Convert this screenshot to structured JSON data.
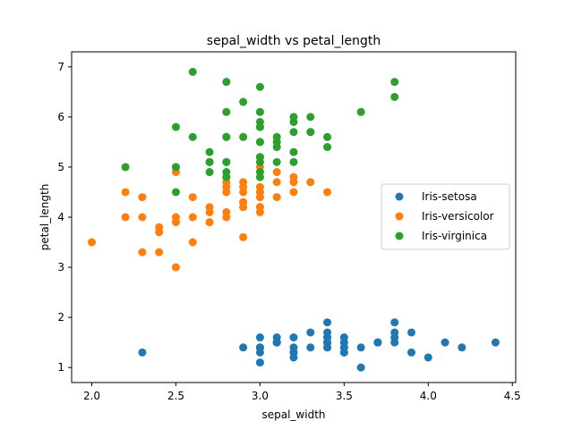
{
  "chart_data": {
    "type": "scatter",
    "title": "sepal_width vs petal_length",
    "xlabel": "sepal_width",
    "ylabel": "petal_length",
    "xlim": [
      1.88,
      4.52
    ],
    "ylim": [
      0.7,
      7.3
    ],
    "xticks": [
      "2.0",
      "2.5",
      "3.0",
      "3.5",
      "4.0",
      "4.5"
    ],
    "yticks": [
      "1",
      "2",
      "3",
      "4",
      "5",
      "6",
      "7"
    ],
    "legend_position": "center-right",
    "series": [
      {
        "name": "Iris-setosa",
        "color": "#1f77b4",
        "points": [
          [
            3.5,
            1.4
          ],
          [
            3.0,
            1.4
          ],
          [
            3.2,
            1.3
          ],
          [
            3.1,
            1.5
          ],
          [
            3.6,
            1.4
          ],
          [
            3.9,
            1.7
          ],
          [
            3.4,
            1.4
          ],
          [
            3.4,
            1.5
          ],
          [
            2.9,
            1.4
          ],
          [
            3.1,
            1.5
          ],
          [
            3.7,
            1.5
          ],
          [
            3.4,
            1.6
          ],
          [
            3.0,
            1.4
          ],
          [
            3.0,
            1.1
          ],
          [
            4.0,
            1.2
          ],
          [
            4.4,
            1.5
          ],
          [
            3.9,
            1.3
          ],
          [
            3.5,
            1.4
          ],
          [
            3.8,
            1.7
          ],
          [
            3.8,
            1.5
          ],
          [
            3.4,
            1.7
          ],
          [
            3.7,
            1.5
          ],
          [
            3.6,
            1.0
          ],
          [
            3.3,
            1.7
          ],
          [
            3.4,
            1.9
          ],
          [
            3.0,
            1.6
          ],
          [
            3.4,
            1.6
          ],
          [
            3.5,
            1.5
          ],
          [
            3.4,
            1.4
          ],
          [
            3.2,
            1.6
          ],
          [
            3.1,
            1.6
          ],
          [
            3.4,
            1.5
          ],
          [
            4.1,
            1.5
          ],
          [
            4.2,
            1.4
          ],
          [
            3.1,
            1.5
          ],
          [
            3.2,
            1.2
          ],
          [
            3.5,
            1.3
          ],
          [
            3.1,
            1.5
          ],
          [
            3.0,
            1.3
          ],
          [
            3.4,
            1.5
          ],
          [
            3.5,
            1.3
          ],
          [
            2.3,
            1.3
          ],
          [
            3.2,
            1.3
          ],
          [
            3.5,
            1.6
          ],
          [
            3.8,
            1.9
          ],
          [
            3.0,
            1.4
          ],
          [
            3.8,
            1.6
          ],
          [
            3.2,
            1.4
          ],
          [
            3.7,
            1.5
          ],
          [
            3.3,
            1.4
          ]
        ]
      },
      {
        "name": "Iris-versicolor",
        "color": "#ff7f0e",
        "points": [
          [
            3.2,
            4.7
          ],
          [
            3.2,
            4.5
          ],
          [
            3.1,
            4.9
          ],
          [
            2.3,
            4.0
          ],
          [
            2.8,
            4.6
          ],
          [
            2.8,
            4.5
          ],
          [
            3.3,
            4.7
          ],
          [
            2.4,
            3.3
          ],
          [
            2.9,
            4.6
          ],
          [
            2.7,
            3.9
          ],
          [
            2.0,
            3.5
          ],
          [
            3.0,
            4.2
          ],
          [
            2.2,
            4.0
          ],
          [
            2.9,
            4.7
          ],
          [
            2.9,
            3.6
          ],
          [
            3.1,
            4.4
          ],
          [
            3.0,
            4.5
          ],
          [
            2.7,
            4.1
          ],
          [
            2.2,
            4.5
          ],
          [
            2.5,
            3.9
          ],
          [
            3.2,
            4.8
          ],
          [
            2.8,
            4.0
          ],
          [
            2.5,
            4.9
          ],
          [
            2.8,
            4.7
          ],
          [
            2.9,
            4.3
          ],
          [
            3.0,
            4.4
          ],
          [
            2.8,
            4.8
          ],
          [
            3.0,
            5.0
          ],
          [
            2.9,
            4.5
          ],
          [
            2.6,
            3.5
          ],
          [
            2.4,
            3.8
          ],
          [
            2.4,
            3.7
          ],
          [
            2.7,
            3.9
          ],
          [
            2.7,
            5.1
          ],
          [
            3.0,
            4.5
          ],
          [
            3.4,
            4.5
          ],
          [
            3.1,
            4.7
          ],
          [
            2.3,
            4.4
          ],
          [
            3.0,
            4.1
          ],
          [
            2.5,
            4.0
          ],
          [
            2.6,
            4.4
          ],
          [
            3.0,
            4.6
          ],
          [
            2.6,
            4.0
          ],
          [
            2.3,
            3.3
          ],
          [
            2.7,
            4.2
          ],
          [
            3.0,
            4.2
          ],
          [
            2.9,
            4.2
          ],
          [
            2.9,
            4.3
          ],
          [
            2.5,
            3.0
          ],
          [
            2.8,
            4.1
          ]
        ]
      },
      {
        "name": "Iris-virginica",
        "color": "#2ca02c",
        "points": [
          [
            3.3,
            6.0
          ],
          [
            2.7,
            5.1
          ],
          [
            3.0,
            5.9
          ],
          [
            2.9,
            5.6
          ],
          [
            3.0,
            5.8
          ],
          [
            3.0,
            6.6
          ],
          [
            2.5,
            4.5
          ],
          [
            2.9,
            6.3
          ],
          [
            2.5,
            5.8
          ],
          [
            3.6,
            6.1
          ],
          [
            3.2,
            5.1
          ],
          [
            2.7,
            5.3
          ],
          [
            3.0,
            5.5
          ],
          [
            2.5,
            5.0
          ],
          [
            2.8,
            5.1
          ],
          [
            3.2,
            5.3
          ],
          [
            3.0,
            5.5
          ],
          [
            3.8,
            6.7
          ],
          [
            2.6,
            6.9
          ],
          [
            2.2,
            5.0
          ],
          [
            3.2,
            5.7
          ],
          [
            2.8,
            4.9
          ],
          [
            2.8,
            6.7
          ],
          [
            2.7,
            4.9
          ],
          [
            3.3,
            5.7
          ],
          [
            3.2,
            6.0
          ],
          [
            2.8,
            4.8
          ],
          [
            3.0,
            4.9
          ],
          [
            2.8,
            5.6
          ],
          [
            3.0,
            5.8
          ],
          [
            2.8,
            6.1
          ],
          [
            3.8,
            6.4
          ],
          [
            2.8,
            5.6
          ],
          [
            2.8,
            5.1
          ],
          [
            2.6,
            5.6
          ],
          [
            3.0,
            6.1
          ],
          [
            3.4,
            5.6
          ],
          [
            3.1,
            5.5
          ],
          [
            3.0,
            4.8
          ],
          [
            3.1,
            5.4
          ],
          [
            3.1,
            5.6
          ],
          [
            3.1,
            5.1
          ],
          [
            2.7,
            5.1
          ],
          [
            3.2,
            5.9
          ],
          [
            3.3,
            5.7
          ],
          [
            3.0,
            5.2
          ],
          [
            2.5,
            5.0
          ],
          [
            3.0,
            5.2
          ],
          [
            3.4,
            5.4
          ],
          [
            3.0,
            5.1
          ]
        ]
      }
    ]
  }
}
